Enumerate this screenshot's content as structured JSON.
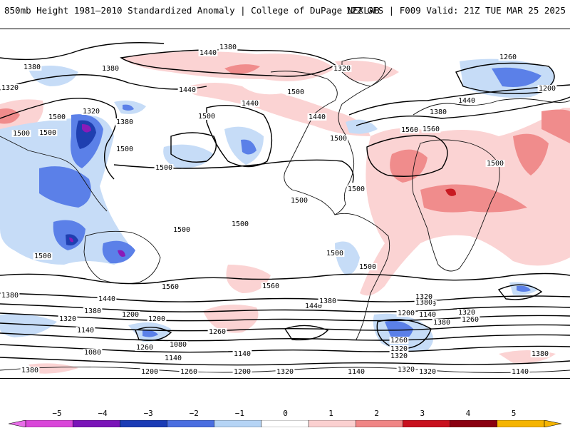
{
  "header": {
    "title_left": "850mb Height 1981–2010 Standardized Anomaly | College of DuPage NEXLAB",
    "title_right": "12Z GFS | F009 Valid: 21Z TUE MAR 25 2025"
  },
  "map": {
    "contour_units": "geopotential height (m)",
    "contour_labels": [
      {
        "text": "1380"
      },
      {
        "text": "1440"
      },
      {
        "text": "1380"
      },
      {
        "text": "1380"
      },
      {
        "text": "1320"
      },
      {
        "text": "1260"
      },
      {
        "text": "1200"
      },
      {
        "text": "1320"
      },
      {
        "text": "1440"
      },
      {
        "text": "1500"
      },
      {
        "text": "1440"
      },
      {
        "text": "1500"
      },
      {
        "text": "1440"
      },
      {
        "text": "1380"
      },
      {
        "text": "1320"
      },
      {
        "text": "1500"
      },
      {
        "text": "1500"
      },
      {
        "text": "1380"
      },
      {
        "text": "1500"
      },
      {
        "text": "1560"
      },
      {
        "text": "1500"
      },
      {
        "text": "1560"
      },
      {
        "text": "1440"
      },
      {
        "text": "1500"
      },
      {
        "text": "1500"
      },
      {
        "text": "1500"
      },
      {
        "text": "1500"
      },
      {
        "text": "1500"
      },
      {
        "text": "1500"
      },
      {
        "text": "1500"
      },
      {
        "text": "1500"
      },
      {
        "text": "1560"
      },
      {
        "text": "1560"
      },
      {
        "text": "1500"
      },
      {
        "text": "1320"
      },
      {
        "text": "1500"
      },
      {
        "text": "1440"
      },
      {
        "text": "1380"
      },
      {
        "text": "1260"
      },
      {
        "text": "1200"
      },
      {
        "text": "1140"
      },
      {
        "text": "1380"
      },
      {
        "text": "1440"
      },
      {
        "text": "1380"
      },
      {
        "text": "1320"
      },
      {
        "text": "1260"
      },
      {
        "text": "1200"
      },
      {
        "text": "1140"
      },
      {
        "text": "1320"
      },
      {
        "text": "1260"
      },
      {
        "text": "1200"
      },
      {
        "text": "1080"
      },
      {
        "text": "1140"
      },
      {
        "text": "1080"
      },
      {
        "text": "1380"
      },
      {
        "text": "1380"
      },
      {
        "text": "1140"
      },
      {
        "text": "1380"
      },
      {
        "text": "1260"
      },
      {
        "text": "1320"
      },
      {
        "text": "1200"
      },
      {
        "text": "1140"
      },
      {
        "text": "1320"
      },
      {
        "text": "1320"
      },
      {
        "text": "1260"
      },
      {
        "text": "1200"
      },
      {
        "text": "1140"
      },
      {
        "text": "1260"
      },
      {
        "text": "1320"
      },
      {
        "text": "1380"
      },
      {
        "text": "1320"
      }
    ]
  },
  "colorbar": {
    "ticks": [
      "−5",
      "−4",
      "−3",
      "−2",
      "−1",
      "0",
      "1",
      "2",
      "3",
      "4",
      "5"
    ],
    "colors": [
      "#d946d9",
      "#7a14b8",
      "#1a3bb5",
      "#4a6ee0",
      "#b5d4f5",
      "#ffffff",
      "#fbd0d0",
      "#f08585",
      "#c8101e",
      "#8a0010",
      "#f5b400"
    ]
  },
  "anomaly_colors": {
    "neg_light": "#c6dcf7",
    "neg_mid": "#5b80e8",
    "neg_strong": "#1f3fb0",
    "neg_extreme": "#8a1bb8",
    "pos_light": "#fbd3d3",
    "pos_mid": "#f08c8c",
    "pos_strong": "#c81a22"
  }
}
